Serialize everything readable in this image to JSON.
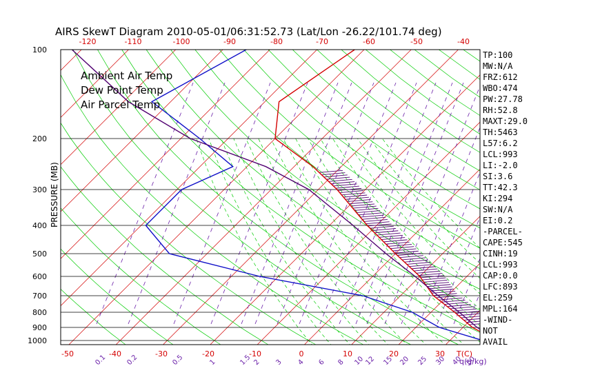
{
  "chart_data": {
    "type": "skew-t log-p",
    "title": "AIRS SkewT Diagram 2010-05-01/06:31:52.73 (Lat/Lon -26.22/101.74 deg)",
    "ylabel": "PRESSURE (MB)",
    "xlabel": "T(C)",
    "mixing_ratio_unit": "q(g/kg)",
    "pressure_ticks": [
      100,
      200,
      300,
      400,
      500,
      600,
      700,
      800,
      900,
      1000
    ],
    "top_temp_ticks": [
      -120,
      -110,
      -100,
      -90,
      -80,
      -70,
      -60,
      -50,
      -40
    ],
    "bottom_temp_ticks": [
      -50,
      -40,
      -30,
      -20,
      -10,
      0,
      10,
      20,
      30
    ],
    "mixing_ratio_ticks": [
      "0.1",
      "0.2",
      "0.5",
      "1",
      "1.5",
      "2",
      "3",
      "4",
      "6",
      "8",
      "10",
      "12",
      "15",
      "20",
      "25",
      "30",
      "40",
      "50"
    ],
    "legend": [
      {
        "name": "Ambient Air Temp",
        "color": "#d40000"
      },
      {
        "name": "Dew Point Temp",
        "color": "#1010c8"
      },
      {
        "name": "Air Parcel Temp",
        "color": "#500070"
      }
    ],
    "legend_position": "top-left",
    "series": [
      {
        "name": "Ambient Air Temp",
        "color": "#d40000",
        "points": [
          [
            100,
            -72
          ],
          [
            150,
            -77
          ],
          [
            200,
            -70
          ],
          [
            250,
            -56
          ],
          [
            300,
            -46
          ],
          [
            400,
            -32
          ],
          [
            500,
            -20
          ],
          [
            600,
            -10
          ],
          [
            700,
            -3
          ],
          [
            800,
            5
          ],
          [
            900,
            12
          ],
          [
            1000,
            20
          ]
        ]
      },
      {
        "name": "Dew Point Temp",
        "color": "#1010c8",
        "points": [
          [
            100,
            -95
          ],
          [
            150,
            -104
          ],
          [
            200,
            -86
          ],
          [
            250,
            -73
          ],
          [
            300,
            -79
          ],
          [
            400,
            -79
          ],
          [
            500,
            -68
          ],
          [
            600,
            -44
          ],
          [
            700,
            -18
          ],
          [
            800,
            -4
          ],
          [
            900,
            5
          ],
          [
            1000,
            17
          ]
        ]
      },
      {
        "name": "Air Parcel Temp",
        "color": "#500070",
        "points": [
          [
            100,
            -132
          ],
          [
            150,
            -109
          ],
          [
            200,
            -88
          ],
          [
            250,
            -66
          ],
          [
            300,
            -52
          ],
          [
            400,
            -35
          ],
          [
            500,
            -22
          ],
          [
            600,
            -11
          ],
          [
            700,
            -2
          ],
          [
            800,
            6
          ],
          [
            900,
            13
          ],
          [
            1000,
            20
          ]
        ]
      }
    ],
    "indices": [
      "TP:100",
      "MW:N/A",
      "FRZ:612",
      "WBO:474",
      "PW:27.78",
      "RH:52.8",
      "MAXT:29.0",
      "TH:5463",
      "L57:6.2",
      "LCL:993",
      "LI:-2.0",
      "SI:3.6",
      "TT:42.3",
      "KI:294",
      "SW:N/A",
      "EI:0.2",
      "-PARCEL-",
      "CAPE:545",
      "CINH:19",
      "LCL:993",
      "CAP:0.0",
      "LFC:893",
      "EL:259",
      "MPL:164",
      "-WIND-",
      "NOT",
      "AVAIL"
    ],
    "colors": {
      "isotherm": "#d40000",
      "dry_adiabat": "#00cc00",
      "moist_adiabat": "#00cc00",
      "mixing_ratio": "#6a1fa8",
      "isobar": "#000000",
      "cape_hatch": "#500070"
    }
  }
}
